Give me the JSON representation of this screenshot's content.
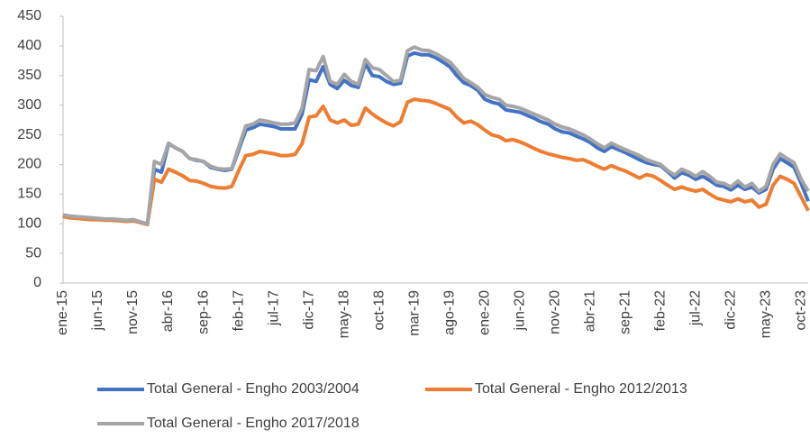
{
  "chart_data": {
    "type": "line",
    "categories": [
      "ene-15",
      null,
      null,
      null,
      null,
      "jun-15",
      null,
      null,
      null,
      null,
      "nov-15",
      null,
      null,
      null,
      null,
      "abr-16",
      null,
      null,
      null,
      null,
      "sep-16",
      null,
      null,
      null,
      null,
      "feb-17",
      null,
      null,
      null,
      null,
      "jul-17",
      null,
      null,
      null,
      null,
      "dic-17",
      null,
      null,
      null,
      null,
      "may-18",
      null,
      null,
      null,
      null,
      "oct-18",
      null,
      null,
      null,
      null,
      "mar-19",
      null,
      null,
      null,
      null,
      "ago-19",
      null,
      null,
      null,
      null,
      "ene-20",
      null,
      null,
      null,
      null,
      "jun-20",
      null,
      null,
      null,
      null,
      "nov-20",
      null,
      null,
      null,
      null,
      "abr-21",
      null,
      null,
      null,
      null,
      "sep-21",
      null,
      null,
      null,
      null,
      "feb-22",
      null,
      null,
      null,
      null,
      "jul-22",
      null,
      null,
      null,
      null,
      "dic-22",
      null,
      null,
      null,
      null,
      "may-23",
      null,
      null,
      null,
      null,
      "oct-23",
      null
    ],
    "series": [
      {
        "name": "Total General - Engho 2003/2004",
        "color": "#4472c4",
        "values": [
          114,
          112,
          111,
          110,
          109,
          108,
          107,
          107,
          106,
          105,
          106,
          103,
          99,
          192,
          187,
          235,
          228,
          222,
          210,
          207,
          205,
          195,
          192,
          190,
          192,
          225,
          258,
          262,
          268,
          266,
          264,
          260,
          260,
          260,
          285,
          343,
          340,
          365,
          335,
          328,
          342,
          333,
          330,
          370,
          350,
          348,
          340,
          335,
          337,
          383,
          388,
          385,
          385,
          380,
          373,
          365,
          350,
          338,
          333,
          325,
          310,
          305,
          302,
          292,
          290,
          288,
          283,
          278,
          272,
          268,
          260,
          255,
          253,
          248,
          243,
          237,
          228,
          222,
          230,
          225,
          220,
          214,
          208,
          203,
          200,
          198,
          188,
          177,
          186,
          182,
          175,
          180,
          173,
          165,
          163,
          157,
          165,
          158,
          162,
          152,
          158,
          192,
          210,
          203,
          195,
          168,
          138
        ]
      },
      {
        "name": "Total General - Engho 2012/2013",
        "color": "#ed7d31",
        "values": [
          112,
          110,
          109,
          108,
          107,
          107,
          106,
          106,
          105,
          104,
          105,
          102,
          99,
          175,
          170,
          192,
          187,
          181,
          173,
          172,
          168,
          163,
          161,
          160,
          163,
          190,
          215,
          217,
          222,
          220,
          218,
          215,
          215,
          217,
          235,
          280,
          282,
          298,
          275,
          270,
          275,
          266,
          268,
          295,
          285,
          277,
          270,
          265,
          272,
          305,
          310,
          308,
          307,
          303,
          298,
          293,
          280,
          270,
          273,
          267,
          258,
          250,
          247,
          240,
          242,
          238,
          233,
          227,
          222,
          218,
          215,
          212,
          210,
          207,
          208,
          203,
          197,
          192,
          198,
          193,
          189,
          183,
          177,
          183,
          180,
          173,
          165,
          158,
          162,
          158,
          155,
          158,
          150,
          143,
          140,
          137,
          142,
          137,
          140,
          128,
          133,
          165,
          180,
          175,
          168,
          145,
          122
        ]
      },
      {
        "name": "Total General - Engho 2017/2018",
        "color": "#a5a5a5",
        "values": [
          115,
          113,
          112,
          111,
          110,
          109,
          108,
          108,
          107,
          106,
          107,
          103,
          100,
          205,
          200,
          236,
          228,
          222,
          210,
          208,
          205,
          197,
          193,
          192,
          193,
          230,
          265,
          268,
          275,
          273,
          270,
          268,
          268,
          270,
          295,
          360,
          358,
          382,
          340,
          335,
          352,
          340,
          335,
          377,
          363,
          360,
          350,
          340,
          342,
          392,
          398,
          393,
          392,
          387,
          380,
          373,
          360,
          345,
          338,
          330,
          318,
          313,
          310,
          300,
          298,
          295,
          290,
          285,
          280,
          275,
          268,
          263,
          260,
          255,
          250,
          243,
          235,
          228,
          236,
          230,
          225,
          220,
          215,
          208,
          204,
          200,
          190,
          182,
          192,
          187,
          180,
          188,
          180,
          170,
          168,
          162,
          172,
          162,
          168,
          155,
          163,
          200,
          218,
          210,
          203,
          175,
          155
        ]
      }
    ],
    "ylim": [
      0,
      450
    ],
    "yticks": [
      0,
      50,
      100,
      150,
      200,
      250,
      300,
      350,
      400,
      450
    ],
    "grid": false
  }
}
